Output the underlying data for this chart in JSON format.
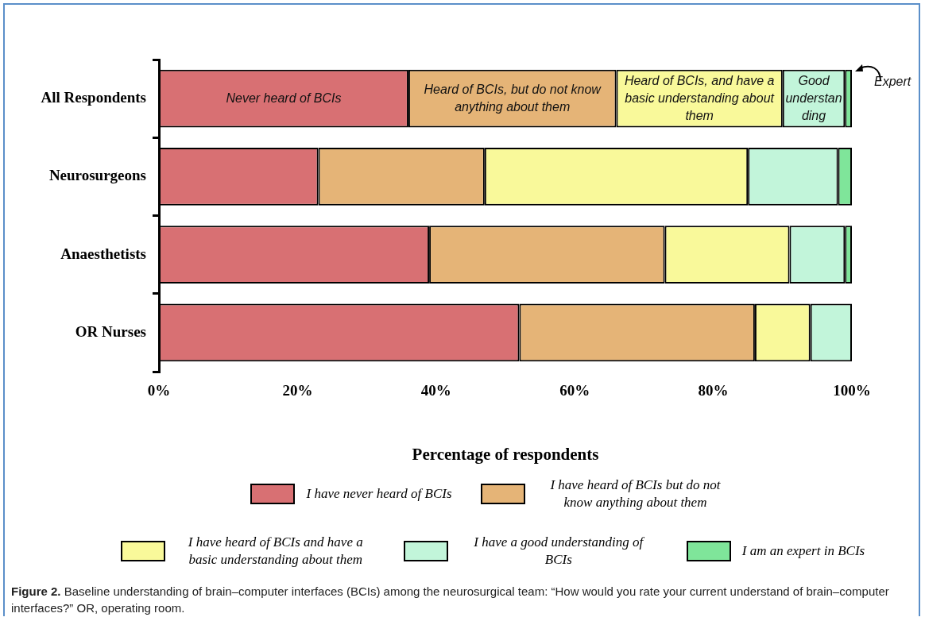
{
  "chart_data": {
    "type": "bar",
    "orientation": "horizontal",
    "stacked": true,
    "categories": [
      "All Respondents",
      "Neurosurgeons",
      "Anaesthetists",
      "OR Nurses"
    ],
    "series": [
      {
        "name": "I have never heard of BCIs",
        "color": "#d87073",
        "values": [
          36,
          23,
          39,
          52
        ]
      },
      {
        "name": "I have heard of BCIs but do not know anything about them",
        "color": "#e5b477",
        "values": [
          30,
          24,
          34,
          34
        ]
      },
      {
        "name": "I have heard of BCIs and have a basic understanding about them",
        "color": "#f9f99a",
        "values": [
          24,
          38,
          18,
          8
        ]
      },
      {
        "name": "I have a good understanding of BCIs",
        "color": "#c2f5da",
        "values": [
          9,
          13,
          8,
          6
        ]
      },
      {
        "name": "I am an expert in BCIs",
        "color": "#7fe59a",
        "values": [
          1,
          2,
          1,
          0
        ]
      }
    ],
    "xlabel": "Percentage of respondents",
    "xlim": [
      0,
      100
    ],
    "xticks": [
      {
        "value": 0,
        "label": "0%"
      },
      {
        "value": 20,
        "label": "20%"
      },
      {
        "value": 40,
        "label": "40%"
      },
      {
        "value": 60,
        "label": "60%"
      },
      {
        "value": 80,
        "label": "80%"
      },
      {
        "value": 100,
        "label": "100%"
      }
    ],
    "legend": "bottom",
    "annotations": [
      "Never heard of BCIs",
      "Heard of BCIs, but do not know anything about them",
      "Heard of BCIs, and have a basic understanding about them",
      "Good understanding",
      "Expert",
      "Figure 2.",
      "Baseline understanding of brain–computer interfaces (BCIs) among the neurosurgical team: “How would you rate your current understand of brain–computer interfaces?” OR, operating room."
    ]
  }
}
